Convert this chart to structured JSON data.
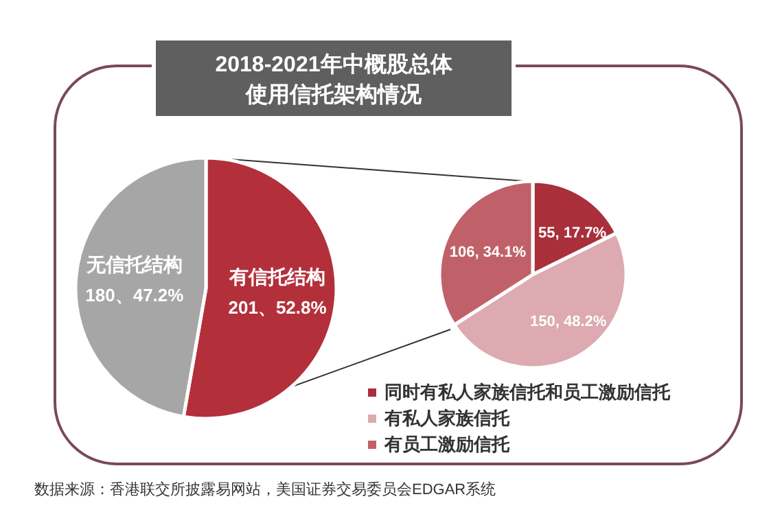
{
  "chart_data": [
    {
      "type": "pie",
      "title": "2018-2021年中概股总体使用信托架构情况",
      "categories": [
        "无信托结构",
        "有信托结构"
      ],
      "values": [
        180,
        201
      ],
      "colors": [
        "#a6a6a6",
        "#b3303b"
      ],
      "value_labels": [
        "180、47.2%",
        "201、52.8%"
      ],
      "annotations": [
        "数据来源：香港联交所披露易网站，美国证券交易委员会EDGAR系统"
      ]
    },
    {
      "type": "pie",
      "categories": [
        "同时有私人家族信托和员工激励信托",
        "有私人家族信托",
        "有员工激励信托"
      ],
      "values": [
        55,
        150,
        106
      ],
      "colors": [
        "#a92f3b",
        "#dcaab0",
        "#c0616a"
      ],
      "value_labels": [
        "55, 17.7%",
        "150, 48.2%",
        "106, 34.1%"
      ],
      "legend": "bottom"
    }
  ]
}
